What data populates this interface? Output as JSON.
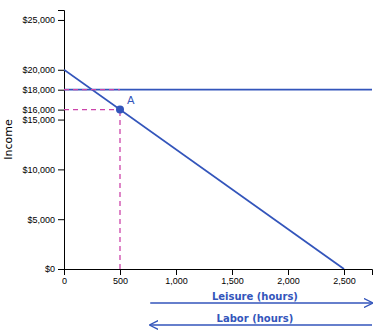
{
  "chart_data": {
    "type": "line",
    "ylabel": "Income",
    "xlim": [
      0,
      2750
    ],
    "ylim": [
      0,
      26000
    ],
    "xticks": [
      0,
      500,
      {
        "value": 1000,
        "label": "1,000"
      },
      {
        "value": 1500,
        "label": "1,500"
      },
      {
        "value": 2000,
        "label": "2,000"
      },
      {
        "value": 2500,
        "label": "2,500"
      }
    ],
    "yticks": [
      {
        "value": 0,
        "label": "$0"
      },
      {
        "value": 5000,
        "label": "$5,000"
      },
      {
        "value": 10000,
        "label": "$10,000"
      },
      {
        "value": 15000,
        "label": "$15,000"
      },
      {
        "value": 16000,
        "label": "$16,000"
      },
      {
        "value": 18000,
        "label": "$18,000"
      },
      {
        "value": 20000,
        "label": "$20,000"
      },
      {
        "value": 25000,
        "label": "$25,000"
      }
    ],
    "grid": false,
    "series": [
      {
        "x": [
          0,
          2500
        ],
        "values": [
          20000,
          0
        ],
        "color": "#3355bb",
        "line_style": "solid"
      },
      {
        "x": [
          0,
          2750
        ],
        "values": [
          18000,
          18000
        ],
        "color": "#3355bb",
        "line_style": "solid"
      },
      {
        "x": [
          500,
          500
        ],
        "values": [
          0,
          16000
        ],
        "color": "#cc44aa",
        "line_style": "dashed"
      },
      {
        "x": [
          0,
          500
        ],
        "values": [
          16000,
          16000
        ],
        "color": "#cc44aa",
        "line_style": "dashed"
      },
      {
        "x": [
          0,
          500
        ],
        "values": [
          18000,
          18000
        ],
        "color": "#cc44aa",
        "line_style": "dashed"
      },
      {
        "type": "scatter",
        "marker": "circle",
        "x": [
          500
        ],
        "values": [
          16000
        ],
        "color": "#3355bb"
      }
    ],
    "annotations": [
      {
        "text": "A",
        "x": 500,
        "y": 16000,
        "color": "#3355bb"
      }
    ],
    "arrows": [
      {
        "text": "Leisure (hours)",
        "direction": "right",
        "color": "#3355bb"
      },
      {
        "text": "Labor (hours)",
        "direction": "left",
        "color": "#3355bb"
      }
    ]
  }
}
